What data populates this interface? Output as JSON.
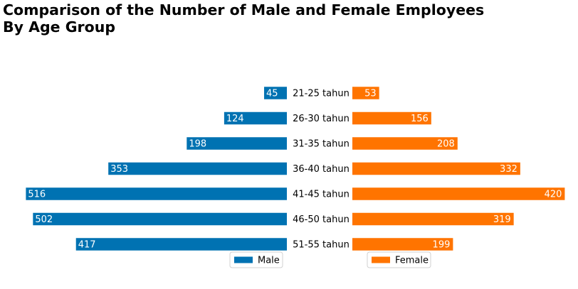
{
  "chart_data": {
    "type": "bar",
    "orientation": "horizontal",
    "layout": "population-pyramid",
    "title_lines": [
      "Comparison of the Number of Male and Female Employees",
      "By Age Group"
    ],
    "categories": [
      "21-25 tahun",
      "26-30 tahun",
      "31-35 tahun",
      "36-40 tahun",
      "41-45 tahun",
      "46-50 tahun",
      "51-55 tahun"
    ],
    "series": [
      {
        "name": "Male",
        "color": "#0072b2",
        "values": [
          45,
          124,
          198,
          353,
          516,
          502,
          417
        ]
      },
      {
        "name": "Female",
        "color": "#ff7400",
        "values": [
          53,
          156,
          208,
          332,
          420,
          319,
          199
        ]
      }
    ],
    "data_labels": true,
    "legend": [
      "Male",
      "Female"
    ],
    "legend_placement": "bottom-right of each panel",
    "grid": false,
    "axes_visible": false
  }
}
